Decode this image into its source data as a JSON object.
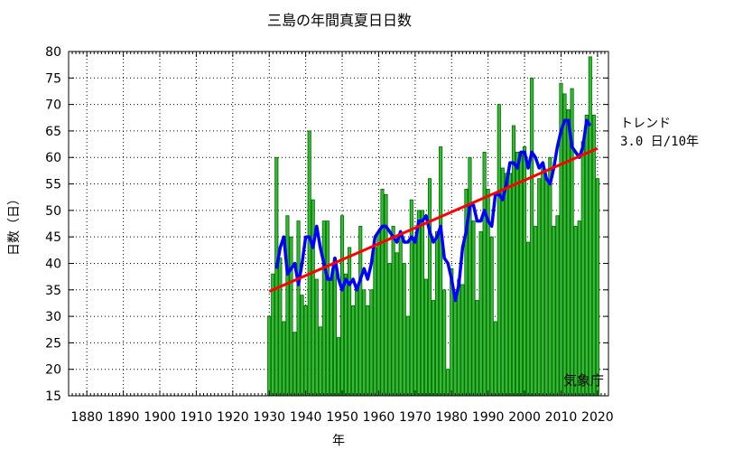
{
  "chart_data": {
    "type": "bar",
    "title": "三島の年間真夏日日数",
    "xlabel": "年",
    "ylabel": "日数（日）",
    "xlim": [
      1875,
      2023
    ],
    "ylim": [
      15,
      80
    ],
    "xticks": [
      1880,
      1890,
      1900,
      1910,
      1920,
      1930,
      1940,
      1950,
      1960,
      1970,
      1980,
      1990,
      2000,
      2010,
      2020
    ],
    "yticks": [
      15,
      20,
      25,
      30,
      35,
      40,
      45,
      50,
      55,
      60,
      65,
      70,
      75,
      80
    ],
    "grid": true,
    "x": [
      1930,
      1931,
      1932,
      1933,
      1934,
      1935,
      1936,
      1937,
      1938,
      1939,
      1940,
      1941,
      1942,
      1943,
      1944,
      1945,
      1946,
      1947,
      1948,
      1949,
      1950,
      1951,
      1952,
      1953,
      1954,
      1955,
      1956,
      1957,
      1958,
      1959,
      1960,
      1961,
      1962,
      1963,
      1964,
      1965,
      1966,
      1967,
      1968,
      1969,
      1970,
      1971,
      1972,
      1973,
      1974,
      1975,
      1976,
      1977,
      1978,
      1979,
      1980,
      1981,
      1982,
      1983,
      1984,
      1985,
      1986,
      1987,
      1988,
      1989,
      1990,
      1991,
      1992,
      1993,
      1994,
      1995,
      1996,
      1997,
      1998,
      1999,
      2000,
      2001,
      2002,
      2003,
      2004,
      2005,
      2006,
      2007,
      2008,
      2009,
      2010,
      2011,
      2012,
      2013,
      2014,
      2015,
      2016,
      2017,
      2018,
      2019,
      2020
    ],
    "series": [
      {
        "values": [
          30,
          38,
          60,
          41,
          29,
          49,
          45,
          27,
          48,
          34,
          32,
          65,
          52,
          37,
          28,
          48,
          48,
          37,
          41,
          26,
          49,
          38,
          43,
          32,
          36,
          47,
          35,
          32,
          35,
          43,
          46,
          54,
          53,
          40,
          47,
          42,
          45,
          40,
          30,
          52,
          45,
          50,
          50,
          37,
          56,
          33,
          46,
          62,
          35,
          20,
          39,
          33,
          37,
          36,
          54,
          60,
          48,
          33,
          46,
          61,
          54,
          45,
          29,
          70,
          58,
          57,
          57,
          66,
          61,
          61,
          62,
          44,
          75,
          47,
          56,
          59,
          56,
          60,
          47,
          49,
          74,
          72,
          69,
          73,
          47,
          48,
          63,
          68,
          79,
          68,
          56
        ]
      },
      {
        "values": [
          null,
          null,
          39,
          43,
          45,
          38,
          39,
          40,
          36,
          40,
          45,
          45,
          43,
          47,
          43,
          40,
          37,
          37,
          41,
          37,
          35,
          37,
          36,
          37,
          35,
          37,
          39,
          37,
          40,
          45,
          46,
          47,
          47,
          46,
          45,
          44,
          46,
          44,
          44,
          45,
          44,
          48,
          48,
          49,
          46,
          44,
          45,
          47,
          41,
          40,
          37,
          33,
          36,
          43,
          46,
          51,
          51,
          48,
          48,
          50,
          48,
          47,
          53,
          53,
          52,
          55,
          59,
          59,
          58,
          61,
          61,
          58,
          61,
          60,
          58,
          59,
          56,
          55,
          58,
          62,
          65,
          67,
          67,
          62,
          61,
          60,
          62,
          67,
          66,
          null,
          null
        ]
      },
      {
        "values": [
          34.7,
          null,
          null,
          null,
          null,
          null,
          null,
          null,
          null,
          null,
          null,
          null,
          null,
          null,
          null,
          null,
          null,
          null,
          null,
          null,
          null,
          null,
          null,
          null,
          null,
          null,
          null,
          null,
          null,
          null,
          null,
          null,
          null,
          null,
          null,
          null,
          null,
          null,
          null,
          null,
          null,
          null,
          null,
          null,
          null,
          null,
          null,
          null,
          null,
          null,
          null,
          null,
          null,
          null,
          null,
          null,
          null,
          null,
          null,
          null,
          null,
          null,
          null,
          null,
          null,
          null,
          null,
          null,
          null,
          null,
          null,
          null,
          null,
          null,
          null,
          null,
          null,
          null,
          null,
          null,
          null,
          null,
          null,
          null,
          null,
          null,
          null,
          null,
          null,
          null,
          61.7
        ]
      }
    ],
    "colors": {
      "bars": "#33bb33",
      "bar_edge": "#006600",
      "moving_average": "#0000ff",
      "trend": "#ff0000",
      "grid": "#000000"
    },
    "annotations": {
      "trend_title": "トレンド",
      "trend_value": "3.0 日/10年",
      "credit": "気象庁"
    }
  }
}
